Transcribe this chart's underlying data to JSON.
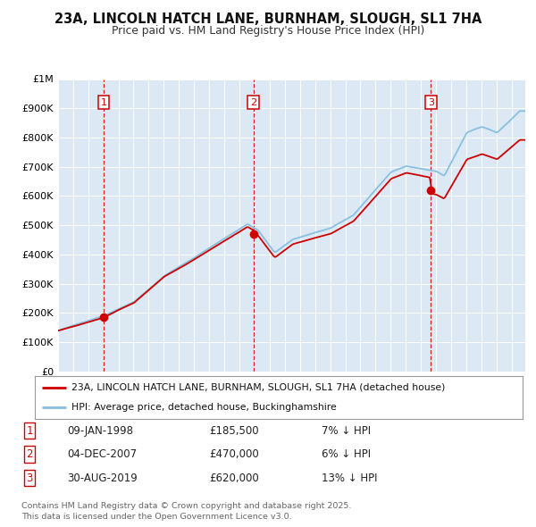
{
  "title_line1": "23A, LINCOLN HATCH LANE, BURNHAM, SLOUGH, SL1 7HA",
  "title_line2": "Price paid vs. HM Land Registry's House Price Index (HPI)",
  "bg_color": "#dce9f5",
  "outer_bg_color": "#ffffff",
  "grid_color": "#ffffff",
  "ylim": [
    0,
    1000000
  ],
  "yticks": [
    0,
    100000,
    200000,
    300000,
    400000,
    500000,
    600000,
    700000,
    800000,
    900000,
    1000000
  ],
  "ytick_labels": [
    "£0",
    "£100K",
    "£200K",
    "£300K",
    "£400K",
    "£500K",
    "£600K",
    "£700K",
    "£800K",
    "£900K",
    "£1M"
  ],
  "hpi_color": "#89bfdf",
  "price_color": "#cc0000",
  "vline_color": "#cc0000",
  "transaction_markers": [
    {
      "year": 1998.03,
      "price": 185500,
      "label": "1"
    },
    {
      "year": 2007.92,
      "price": 470000,
      "label": "2"
    },
    {
      "year": 2019.66,
      "price": 620000,
      "label": "3"
    }
  ],
  "legend_line1": "23A, LINCOLN HATCH LANE, BURNHAM, SLOUGH, SL1 7HA (detached house)",
  "legend_line2": "HPI: Average price, detached house, Buckinghamshire",
  "table_rows": [
    {
      "num": "1",
      "date": "09-JAN-1998",
      "price": "£185,500",
      "pct": "7% ↓ HPI"
    },
    {
      "num": "2",
      "date": "04-DEC-2007",
      "price": "£470,000",
      "pct": "6% ↓ HPI"
    },
    {
      "num": "3",
      "date": "30-AUG-2019",
      "price": "£620,000",
      "pct": "13% ↓ HPI"
    }
  ],
  "footnote": "Contains HM Land Registry data © Crown copyright and database right 2025.\nThis data is licensed under the Open Government Licence v3.0.",
  "xlim_start": 1995.0,
  "xlim_end": 2025.9
}
